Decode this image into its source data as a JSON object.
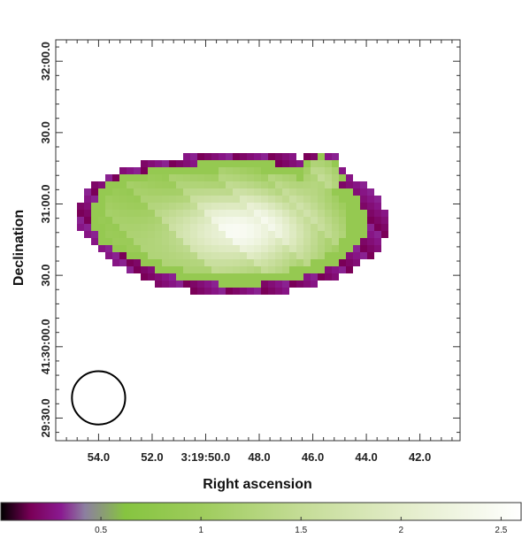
{
  "chart_data": {
    "type": "heatmap",
    "title": "",
    "xlabel": "Right ascension",
    "ylabel": "Declination",
    "x_ticks": [
      {
        "label": "54.0",
        "ra_s": 54.0
      },
      {
        "label": "52.0",
        "ra_s": 52.0
      },
      {
        "label": "3:19:50.0",
        "ra_s": 50.0
      },
      {
        "label": "48.0",
        "ra_s": 48.0
      },
      {
        "label": "46.0",
        "ra_s": 46.0
      },
      {
        "label": "44.0",
        "ra_s": 44.0
      },
      {
        "label": "42.0",
        "ra_s": 42.0
      }
    ],
    "y_ticks": [
      {
        "label": "29:30.0",
        "dec_s": 1770
      },
      {
        "label": "41:30:00.0",
        "dec_s": 1800
      },
      {
        "label": "30.0",
        "dec_s": 1830
      },
      {
        "label": "31:00.0",
        "dec_s": 1860
      },
      {
        "label": "30.0",
        "dec_s": 1890
      },
      {
        "label": "32:00.0",
        "dec_s": 1920
      }
    ],
    "xlim_ra_s": [
      55.6,
      40.5
    ],
    "ylim_dec_s": [
      1760.5,
      1929
    ],
    "colorbar": {
      "range": [
        0,
        2.6
      ],
      "ticks": [
        {
          "label": "0.5",
          "value": 0.5
        },
        {
          "label": "1",
          "value": 1.0
        },
        {
          "label": "1.5",
          "value": 1.5
        },
        {
          "label": "2",
          "value": 2.0
        },
        {
          "label": "2.5",
          "value": 2.5
        }
      ],
      "stops": [
        {
          "value": 0.0,
          "color": "#000000"
        },
        {
          "value": 0.15,
          "color": "#7a0058"
        },
        {
          "value": 0.3,
          "color": "#8a1a90"
        },
        {
          "value": 0.42,
          "color": "#8c7fa0"
        },
        {
          "value": 0.52,
          "color": "#8aa070"
        },
        {
          "value": 0.62,
          "color": "#86c440"
        },
        {
          "value": 1.0,
          "color": "#9ecc5c"
        },
        {
          "value": 1.5,
          "color": "#c4dc96"
        },
        {
          "value": 2.0,
          "color": "#e2ecc8"
        },
        {
          "value": 2.6,
          "color": "#ffffff"
        }
      ]
    },
    "beam": {
      "ra_s": 54.0,
      "dec_s": 1778.5,
      "radius_arcsec": 11.2
    },
    "source": {
      "main_center_ra_s": 48.8,
      "main_center_dec_s": 1852,
      "main_radius_ra_s": 5.2,
      "main_radius_dec_s": 28,
      "knot_center_ra_s": 45.7,
      "knot_center_dec_s": 1871,
      "knot_radius_arcsec": 10,
      "peak_value": 2.5,
      "edge_value": 0.15
    }
  }
}
